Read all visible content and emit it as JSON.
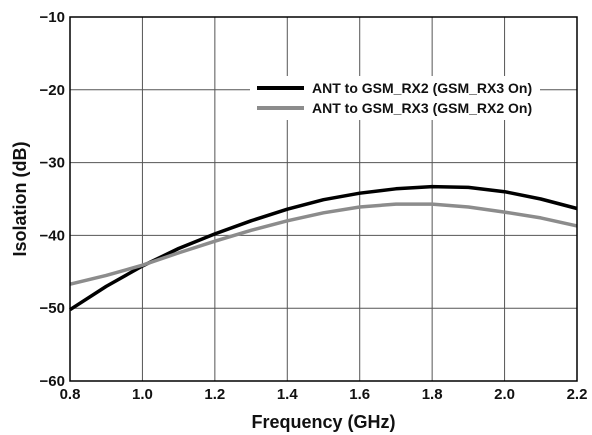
{
  "chart_data": {
    "type": "line",
    "xlabel": "Frequency (GHz)",
    "ylabel": "Isolation (dB)",
    "xlim": [
      0.8,
      2.2
    ],
    "ylim": [
      -60,
      -10
    ],
    "xticks": [
      0.8,
      1.0,
      1.2,
      1.4,
      1.6,
      1.8,
      2.0,
      2.2
    ],
    "yticks": [
      -60,
      -50,
      -40,
      -30,
      -20,
      -10
    ],
    "xtick_labels": [
      "0.8",
      "1.0",
      "1.2",
      "1.4",
      "1.6",
      "1.8",
      "2.0",
      "2.2"
    ],
    "ytick_labels": [
      "−60",
      "−50",
      "−40",
      "−30",
      "−20",
      "−10"
    ],
    "grid": true,
    "legend_position": "top-right",
    "series": [
      {
        "name": "ANT to GSM_RX2 (GSM_RX3 On)",
        "color": "#000000",
        "x": [
          0.8,
          0.9,
          1.0,
          1.1,
          1.2,
          1.3,
          1.4,
          1.5,
          1.6,
          1.7,
          1.8,
          1.9,
          2.0,
          2.1,
          2.2
        ],
        "y": [
          -50.2,
          -47.0,
          -44.2,
          -41.8,
          -39.8,
          -38.0,
          -36.4,
          -35.1,
          -34.2,
          -33.6,
          -33.3,
          -33.4,
          -34.0,
          -35.0,
          -36.3
        ]
      },
      {
        "name": "ANT to GSM_RX3 (GSM_RX2 On)",
        "color": "#8c8c8c",
        "x": [
          0.8,
          0.9,
          1.0,
          1.1,
          1.2,
          1.3,
          1.4,
          1.5,
          1.6,
          1.7,
          1.8,
          1.9,
          2.0,
          2.1,
          2.2
        ],
        "y": [
          -46.7,
          -45.5,
          -44.1,
          -42.4,
          -40.8,
          -39.3,
          -38.0,
          -36.9,
          -36.1,
          -35.7,
          -35.7,
          -36.1,
          -36.8,
          -37.6,
          -38.7
        ]
      }
    ]
  }
}
